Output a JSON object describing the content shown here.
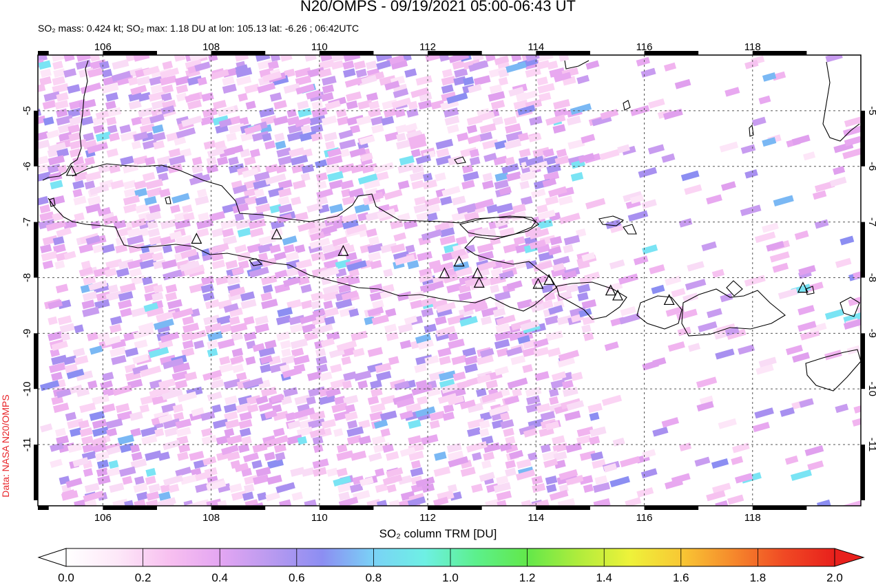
{
  "header": {
    "title": "N20/OMPS - 09/19/2021 05:00-06:43 UT",
    "subtitle": "SO₂ mass: 0.424 kt; SO₂ max: 1.18 DU at lon: 105.13 lat: -6.26 ; 06:42UTC"
  },
  "credit": "Data: NASA N20/OMPS",
  "map": {
    "lon_range": [
      104.8,
      120.0
    ],
    "lat_range": [
      -12.1,
      -4.0
    ],
    "lon_ticks": [
      "106",
      "108",
      "110",
      "112",
      "114",
      "116",
      "118"
    ],
    "lat_ticks": [
      "-5",
      "-6",
      "-7",
      "-8",
      "-9",
      "-10",
      "-11"
    ],
    "volcanoes": [
      [
        105.42,
        -6.1
      ],
      [
        107.73,
        -7.32
      ],
      [
        109.21,
        -7.24
      ],
      [
        110.44,
        -7.54
      ],
      [
        112.31,
        -7.94
      ],
      [
        112.58,
        -7.73
      ],
      [
        112.92,
        -7.94
      ],
      [
        112.95,
        -8.11
      ],
      [
        114.04,
        -8.13
      ],
      [
        114.24,
        -8.06
      ],
      [
        115.38,
        -8.25
      ],
      [
        115.51,
        -8.34
      ],
      [
        116.46,
        -8.42
      ],
      [
        118.93,
        -8.2
      ]
    ]
  },
  "colorbar": {
    "label": "SO₂ column TRM [DU]",
    "ticks": [
      "0.0",
      "0.2",
      "0.4",
      "0.6",
      "0.8",
      "1.0",
      "1.2",
      "1.4",
      "1.6",
      "1.8",
      "2.0"
    ],
    "colors": [
      "#ffffff",
      "#fde8f8",
      "#f8c0f0",
      "#e4a6f2",
      "#b99af0",
      "#8c8ef2",
      "#7ad2f6",
      "#6ef0e4",
      "#5cf08c",
      "#62e84a",
      "#b0ec3c",
      "#eef23a",
      "#f8c834",
      "#f68a2c",
      "#f04a24",
      "#e8201c"
    ]
  }
}
